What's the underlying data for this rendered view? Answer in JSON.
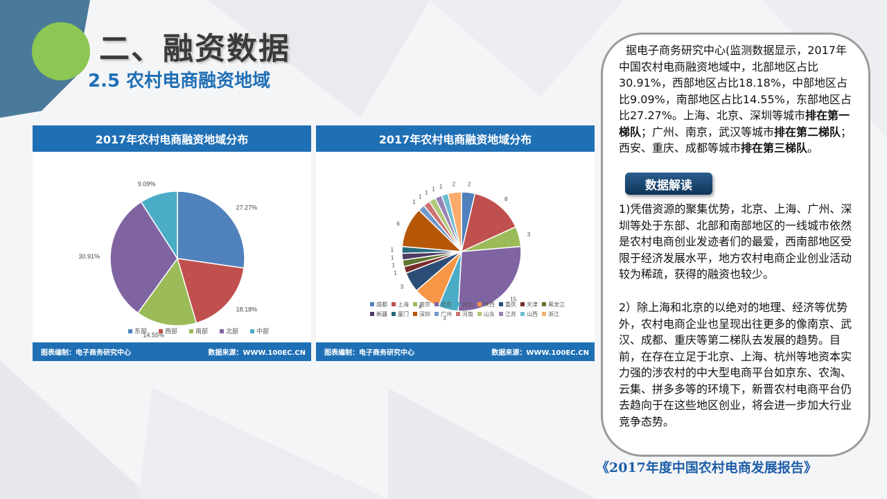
{
  "page": {
    "title": "二、融资数据",
    "subtitle": "2.5 农村电商融资地域",
    "report": "《2017年度中国农村电商发展报告》"
  },
  "colors": {
    "accent": "#1f6fb5",
    "green": "#8cc653",
    "steel": "#4a7a99"
  },
  "chart_left": {
    "header": "2017年农村电商融资地域分布",
    "footer_left": "图表编制：电子商务研究中心",
    "footer_right": "数据来源：WWW.100EC.CN"
  },
  "chart_right": {
    "header": "2017年农村电商融资地域分布",
    "footer_left": "图表编制：电子商务研究中心",
    "footer_right": "数据来源：WWW.100EC.CN"
  },
  "chart_data": [
    {
      "type": "pie",
      "title": "2017年农村电商融资地域分布",
      "categories": [
        "东部",
        "西部",
        "南部",
        "北部",
        "中部"
      ],
      "values": [
        27.27,
        18.18,
        14.55,
        30.91,
        9.09
      ],
      "labels": [
        "27.27%",
        "18.18%",
        "14.55%",
        "30.91%",
        "9.09%"
      ],
      "colors": [
        "#4f81bd",
        "#c0504d",
        "#9bbb59",
        "#8064a2",
        "#4bacc6"
      ],
      "legend": "bottom"
    },
    {
      "type": "pie",
      "title": "2017年农村电商融资地域分布",
      "categories": [
        "成都",
        "上海",
        "南京",
        "北京",
        "湖北",
        "陕西",
        "重庆",
        "天津",
        "黑龙江",
        "新疆",
        "厦门",
        "深圳",
        "广州",
        "河南",
        "山东",
        "江苏",
        "山西",
        "浙江"
      ],
      "values": [
        2,
        8,
        3,
        15,
        3,
        4,
        3,
        1,
        1,
        1,
        1,
        6,
        1,
        1,
        1,
        1,
        1,
        2
      ],
      "labels": [
        "2",
        "8",
        "3",
        "15",
        "3",
        "4",
        "3",
        "1",
        "1",
        "1",
        "1",
        "6",
        "1",
        "1",
        "1",
        "1",
        "1",
        "2"
      ],
      "colors": [
        "#4f81bd",
        "#c0504d",
        "#9bbb59",
        "#8064a2",
        "#4bacc6",
        "#f79646",
        "#2c4d75",
        "#772c2a",
        "#5f7530",
        "#4d3b62",
        "#276a7c",
        "#b65708",
        "#729aca",
        "#cd7371",
        "#afc97a",
        "#9983b5",
        "#6fbdd1",
        "#f9ab6b"
      ],
      "legend": "bottom"
    }
  ],
  "side": {
    "paragraph1_a": "据电子商务研究中心(监测数据显示，2017年中国农村电商融资地域中，北部地区占比30.91%，西部地区占比18.18%，中部地区占比9.09%，南部地区占比14.55%，东部地区占比27.27%。上海、北京、深圳等城市",
    "bold1": "排在第一梯队",
    "paragraph1_b": "；广州、南京，武汉等城市",
    "bold2": "排在第二梯队",
    "paragraph1_c": "；西安、重庆、成都等城市",
    "bold3": "排在第三梯队",
    "paragraph1_d": "。",
    "button": "数据解读",
    "paragraph2": "1)凭借资源的聚集优势，北京、上海、广州、深圳等处于东部、北部和南部地区的一线城市依然是农村电商创业发迹者们的最爱，西南部地区受限于经济发展水平，地方农村电商企业创业活动较为稀疏，获得的融资也较少。",
    "paragraph3": "2）除上海和北京的以绝对的地理、经济等优势外，农村电商企业也呈现出往更多的像南京、武汉、成都、重庆等第二梯队去发展的趋势。目前，在存在立足于北京、上海、杭州等地资本实力强的涉农村的中大型电商平台如京东、农淘、云集、拼多多等的环境下，新晋农村电商平台仍去趋向于在这些地区创业，将会进一步加大行业竞争态势。"
  }
}
